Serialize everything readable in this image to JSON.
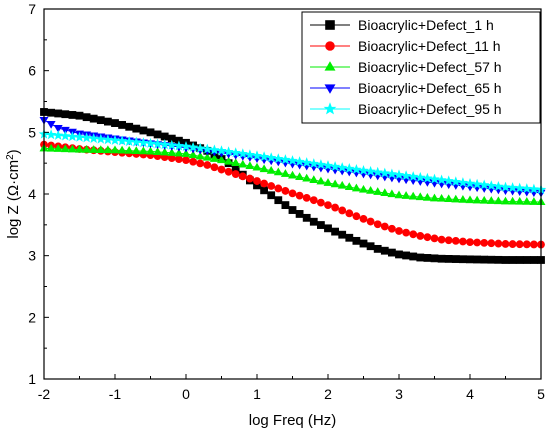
{
  "chart_data": {
    "type": "scatter",
    "xlabel": "log Freq (Hz)",
    "ylabel_main": "log Z (Ω·cm",
    "ylabel_sup": "2",
    "ylabel_close": ")",
    "xlim": [
      -2,
      5
    ],
    "ylim": [
      1,
      7
    ],
    "xticks": [
      "-2",
      "-1",
      "0",
      "1",
      "2",
      "3",
      "4",
      "5"
    ],
    "yticks": [
      "1",
      "2",
      "3",
      "4",
      "5",
      "6",
      "7"
    ],
    "legend_position": "top-right",
    "grid": false,
    "series": [
      {
        "name": "Bioacrylic+Defect_1 h",
        "color": "#000000",
        "marker": "square",
        "points": [
          [
            -2.0,
            5.33
          ],
          [
            -1.5,
            5.27
          ],
          [
            -1.0,
            5.15
          ],
          [
            -0.5,
            5.0
          ],
          [
            0.0,
            4.83
          ],
          [
            0.3,
            4.7
          ],
          [
            0.6,
            4.5
          ],
          [
            0.9,
            4.22
          ],
          [
            1.2,
            3.98
          ],
          [
            1.5,
            3.74
          ],
          [
            1.8,
            3.55
          ],
          [
            2.1,
            3.39
          ],
          [
            2.4,
            3.24
          ],
          [
            2.7,
            3.11
          ],
          [
            3.0,
            3.02
          ],
          [
            3.3,
            2.97
          ],
          [
            3.6,
            2.95
          ],
          [
            4.0,
            2.94
          ],
          [
            4.5,
            2.93
          ],
          [
            5.0,
            2.93
          ]
        ]
      },
      {
        "name": "Bioacrylic+Defect_11 h",
        "color": "#ff0000",
        "marker": "circle",
        "points": [
          [
            -2.0,
            4.8
          ],
          [
            -1.5,
            4.73
          ],
          [
            -1.0,
            4.68
          ],
          [
            -0.5,
            4.63
          ],
          [
            0.0,
            4.55
          ],
          [
            0.3,
            4.47
          ],
          [
            0.6,
            4.36
          ],
          [
            0.9,
            4.25
          ],
          [
            1.2,
            4.13
          ],
          [
            1.5,
            4.01
          ],
          [
            1.8,
            3.9
          ],
          [
            2.1,
            3.78
          ],
          [
            2.4,
            3.64
          ],
          [
            2.7,
            3.51
          ],
          [
            3.0,
            3.4
          ],
          [
            3.3,
            3.32
          ],
          [
            3.6,
            3.26
          ],
          [
            4.0,
            3.22
          ],
          [
            4.5,
            3.19
          ],
          [
            5.0,
            3.18
          ]
        ]
      },
      {
        "name": "Bioacrylic+Defect_57 h",
        "color": "#00ee00",
        "marker": "triangle-up",
        "points": [
          [
            -2.0,
            4.74
          ],
          [
            -1.5,
            4.72
          ],
          [
            -1.0,
            4.71
          ],
          [
            -0.5,
            4.69
          ],
          [
            0.0,
            4.65
          ],
          [
            0.5,
            4.55
          ],
          [
            1.0,
            4.43
          ],
          [
            1.5,
            4.3
          ],
          [
            2.0,
            4.18
          ],
          [
            2.5,
            4.07
          ],
          [
            3.0,
            3.98
          ],
          [
            3.5,
            3.93
          ],
          [
            4.0,
            3.9
          ],
          [
            4.5,
            3.88
          ],
          [
            5.0,
            3.87
          ]
        ]
      },
      {
        "name": "Bioacrylic+Defect_65 h",
        "color": "#0000ff",
        "marker": "triangle-down",
        "points": [
          [
            -2.0,
            5.2
          ],
          [
            -1.8,
            5.07
          ],
          [
            -1.5,
            4.98
          ],
          [
            -1.0,
            4.9
          ],
          [
            -0.5,
            4.82
          ],
          [
            0.0,
            4.75
          ],
          [
            0.5,
            4.67
          ],
          [
            1.0,
            4.58
          ],
          [
            1.5,
            4.49
          ],
          [
            2.0,
            4.41
          ],
          [
            2.5,
            4.33
          ],
          [
            3.0,
            4.25
          ],
          [
            3.5,
            4.18
          ],
          [
            4.0,
            4.12
          ],
          [
            4.5,
            4.06
          ],
          [
            5.0,
            4.02
          ]
        ]
      },
      {
        "name": "Bioacrylic+Defect_95 h",
        "color": "#00ffff",
        "marker": "star",
        "points": [
          [
            -2.0,
            4.97
          ],
          [
            -1.5,
            4.92
          ],
          [
            -1.0,
            4.87
          ],
          [
            -0.5,
            4.82
          ],
          [
            0.0,
            4.77
          ],
          [
            0.5,
            4.7
          ],
          [
            1.0,
            4.62
          ],
          [
            1.5,
            4.54
          ],
          [
            2.0,
            4.46
          ],
          [
            2.5,
            4.38
          ],
          [
            3.0,
            4.31
          ],
          [
            3.5,
            4.24
          ],
          [
            4.0,
            4.17
          ],
          [
            4.5,
            4.11
          ],
          [
            5.0,
            4.07
          ]
        ]
      }
    ]
  }
}
